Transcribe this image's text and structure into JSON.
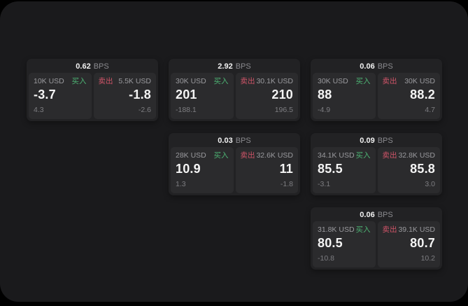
{
  "labels": {
    "bps": "BPS",
    "buy": "买入",
    "sell": "卖出"
  },
  "colors": {
    "background": "#000000",
    "panel": "#1a1a1c",
    "card": "#222224",
    "side_panel": "#2b2b2d",
    "buy": "#4db373",
    "sell": "#cf5468",
    "text_primary": "#f4f4f4",
    "text_secondary": "#9a9a9e",
    "text_muted": "#7d7d81"
  },
  "cards": [
    {
      "col": 1,
      "row": 1,
      "bps": "0.62",
      "buy": {
        "amount": "10K USD",
        "value": "-3.7",
        "delta": "4.3"
      },
      "sell": {
        "amount": "5.5K USD",
        "value": "-1.8",
        "delta": "-2.6"
      }
    },
    {
      "col": 2,
      "row": 1,
      "bps": "2.92",
      "buy": {
        "amount": "30K USD",
        "value": "201",
        "delta": "-188.1"
      },
      "sell": {
        "amount": "30.1K USD",
        "value": "210",
        "delta": "196.5"
      }
    },
    {
      "col": 3,
      "row": 1,
      "bps": "0.06",
      "buy": {
        "amount": "30K USD",
        "value": "88",
        "delta": "-4.9"
      },
      "sell": {
        "amount": "30K USD",
        "value": "88.2",
        "delta": "4.7"
      }
    },
    {
      "col": 2,
      "row": 2,
      "bps": "0.03",
      "buy": {
        "amount": "28K USD",
        "value": "10.9",
        "delta": "1.3"
      },
      "sell": {
        "amount": "32.6K USD",
        "value": "11",
        "delta": "-1.8"
      }
    },
    {
      "col": 3,
      "row": 2,
      "bps": "0.09",
      "buy": {
        "amount": "34.1K USD",
        "value": "85.5",
        "delta": "-3.1"
      },
      "sell": {
        "amount": "32.8K USD",
        "value": "85.8",
        "delta": "3.0"
      }
    },
    {
      "col": 3,
      "row": 3,
      "bps": "0.06",
      "buy": {
        "amount": "31.8K USD",
        "value": "80.5",
        "delta": "-10.8"
      },
      "sell": {
        "amount": "39.1K USD",
        "value": "80.7",
        "delta": "10.2"
      }
    }
  ]
}
